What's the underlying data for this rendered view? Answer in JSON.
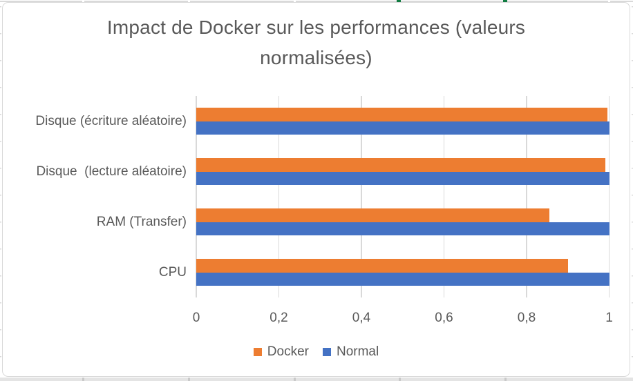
{
  "colors": {
    "docker": "#ED7D31",
    "normal": "#4472C4",
    "text": "#595959",
    "grid": "#D9D9D9",
    "frame": "#D9D9D9",
    "band": "#E4E4E4",
    "bandmark": "#C9C9C9",
    "green": "#107C41"
  },
  "chart_data": {
    "type": "bar",
    "orientation": "horizontal",
    "title": "Impact de Docker sur les performances (valeurs normalisées)",
    "title_lines": [
      "Impact de Docker sur les performances (valeurs",
      "normalisées)"
    ],
    "categories_top_to_bottom": [
      "Disque (écriture aléatoire)",
      "Disque  (lecture aléatoire)",
      "RAM (Transfer)",
      "CPU"
    ],
    "series": [
      {
        "name": "Docker",
        "color_key": "docker",
        "values": [
          0.995,
          0.99,
          0.855,
          0.9
        ]
      },
      {
        "name": "Normal",
        "color_key": "normal",
        "values": [
          1,
          1,
          1,
          1
        ]
      }
    ],
    "x_axis": {
      "min": 0,
      "max": 1,
      "tick_step": 0.2,
      "tick_labels": [
        "0",
        "0,2",
        "0,4",
        "0,6",
        "0,8",
        "1"
      ],
      "decimal_separator": ","
    },
    "grid": "vertical-only",
    "legend": {
      "position": "bottom",
      "entries": [
        "Docker",
        "Normal"
      ]
    }
  }
}
